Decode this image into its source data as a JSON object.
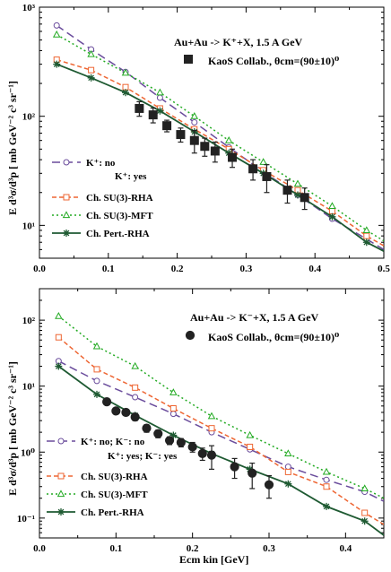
{
  "chart_data": [
    {
      "type": "line",
      "yscale": "log",
      "xlim": [
        0.0,
        0.5
      ],
      "ylim": [
        5,
        1000
      ],
      "x_ticks": [
        "0.0",
        "0.1",
        "0.2",
        "0.3",
        "0.4",
        "0.5"
      ],
      "y_ticks": [
        "10¹",
        "10²",
        "10³"
      ],
      "ylabel": "E d³σ/d³p  [ mb GeV⁻² c³ sr⁻¹]",
      "annotation": "Au+Au -> K⁺+X, 1.5 A GeV",
      "data_label": "KaoS Collab., θcm=(90±10)⁰",
      "legend_header": "K⁺: yes",
      "series": [
        {
          "name": "K⁺: no",
          "color": "#6a4c9c",
          "dash": "long",
          "marker": "circle",
          "x": [
            0.025,
            0.075,
            0.125,
            0.175,
            0.225,
            0.275,
            0.325,
            0.375,
            0.425,
            0.475,
            0.5
          ],
          "y": [
            680,
            410,
            255,
            148,
            88,
            52,
            31,
            19,
            11.5,
            7.5,
            6
          ]
        },
        {
          "name": "Ch. SU(3)-RHA",
          "color": "#ee6633",
          "dash": "short",
          "marker": "square",
          "x": [
            0.025,
            0.075,
            0.125,
            0.175,
            0.225,
            0.275,
            0.325,
            0.375,
            0.425,
            0.475,
            0.5
          ],
          "y": [
            330,
            265,
            185,
            118,
            76,
            50,
            32,
            21,
            13.5,
            8,
            6.5
          ]
        },
        {
          "name": "Ch. SU(3)-MFT",
          "color": "#22aa22",
          "dash": "dot",
          "marker": "triangle",
          "x": [
            0.025,
            0.075,
            0.125,
            0.175,
            0.225,
            0.275,
            0.325,
            0.375,
            0.425,
            0.475,
            0.5
          ],
          "y": [
            560,
            370,
            250,
            165,
            100,
            60,
            38,
            24,
            15,
            9,
            7.2
          ]
        },
        {
          "name": "Ch. Pert.-RHA",
          "color": "#1e5a32",
          "dash": "solid",
          "marker": "star",
          "x": [
            0.025,
            0.075,
            0.125,
            0.175,
            0.225,
            0.275,
            0.325,
            0.375,
            0.425,
            0.475,
            0.5
          ],
          "y": [
            300,
            225,
            165,
            112,
            72,
            46,
            30,
            19,
            12,
            7,
            5.8
          ]
        }
      ],
      "data_points": {
        "name": "KaoS Collab.",
        "marker": "filled-square",
        "x": [
          0.145,
          0.165,
          0.185,
          0.205,
          0.225,
          0.24,
          0.255,
          0.28,
          0.31,
          0.33,
          0.36,
          0.385
        ],
        "y": [
          118,
          103,
          82,
          68,
          60,
          53,
          48,
          42,
          33,
          28,
          21,
          18
        ],
        "err": [
          18,
          16,
          10,
          10,
          14,
          10,
          10,
          8,
          7,
          8,
          5,
          4
        ]
      }
    },
    {
      "type": "line",
      "yscale": "log",
      "xlim": [
        0.0,
        0.45
      ],
      "ylim": [
        0.05,
        300
      ],
      "x_ticks": [
        "0.0",
        "0.1",
        "0.2",
        "0.3",
        "0.4"
      ],
      "y_ticks": [
        "10⁻¹",
        "10⁰",
        "10¹",
        "10²"
      ],
      "xlabel": "Ecm kin [GeV]",
      "ylabel": "E d³σ/d³p  [ mb GeV⁻² c³ sr⁻¹]",
      "annotation": "Au+Au -> K⁻+X, 1.5 A GeV",
      "data_label": "KaoS Collab., θcm=(90±10)⁰",
      "legend_header": "K⁺: yes; K⁻: yes",
      "series": [
        {
          "name": "K⁺: no;  K⁻: no",
          "color": "#6a4c9c",
          "dash": "long",
          "marker": "circle",
          "x": [
            0.025,
            0.075,
            0.125,
            0.175,
            0.225,
            0.275,
            0.325,
            0.375,
            0.425,
            0.45
          ],
          "y": [
            24,
            12,
            6.8,
            3.8,
            2.0,
            1.1,
            0.6,
            0.38,
            0.25,
            0.18
          ]
        },
        {
          "name": "Ch. SU(3)-RHA",
          "color": "#ee6633",
          "dash": "short",
          "marker": "square",
          "x": [
            0.025,
            0.075,
            0.125,
            0.175,
            0.225,
            0.275,
            0.325,
            0.375,
            0.425,
            0.45
          ],
          "y": [
            55,
            18,
            9.5,
            4.6,
            2.3,
            1.2,
            0.5,
            0.3,
            0.12,
            0.08
          ]
        },
        {
          "name": "Ch. SU(3)-MFT",
          "color": "#22aa22",
          "dash": "dot",
          "marker": "triangle",
          "x": [
            0.025,
            0.075,
            0.125,
            0.175,
            0.225,
            0.275,
            0.325,
            0.375,
            0.425,
            0.45
          ],
          "y": [
            115,
            40,
            20,
            8,
            3.5,
            1.8,
            0.95,
            0.5,
            0.28,
            0.2
          ]
        },
        {
          "name": "Ch. Pert.-RHA",
          "color": "#1e5a32",
          "dash": "solid",
          "marker": "star",
          "x": [
            0.025,
            0.075,
            0.125,
            0.175,
            0.225,
            0.275,
            0.325,
            0.375,
            0.425,
            0.45
          ],
          "y": [
            20,
            7.5,
            3.6,
            1.8,
            0.95,
            0.55,
            0.33,
            0.15,
            0.09,
            0.055
          ]
        }
      ],
      "data_points": {
        "name": "KaoS Collab.",
        "marker": "filled-circle",
        "x": [
          0.088,
          0.1,
          0.113,
          0.125,
          0.14,
          0.155,
          0.17,
          0.185,
          0.2,
          0.213,
          0.225,
          0.255,
          0.278,
          0.3
        ],
        "y": [
          5.8,
          4.2,
          4.0,
          3.4,
          2.3,
          1.9,
          1.5,
          1.4,
          1.2,
          0.95,
          0.9,
          0.6,
          0.48,
          0.32
        ],
        "err": [
          0.6,
          0.4,
          0.4,
          0.4,
          0.3,
          0.25,
          0.2,
          0.2,
          0.2,
          0.2,
          0.35,
          0.2,
          0.2,
          0.12
        ]
      }
    }
  ]
}
